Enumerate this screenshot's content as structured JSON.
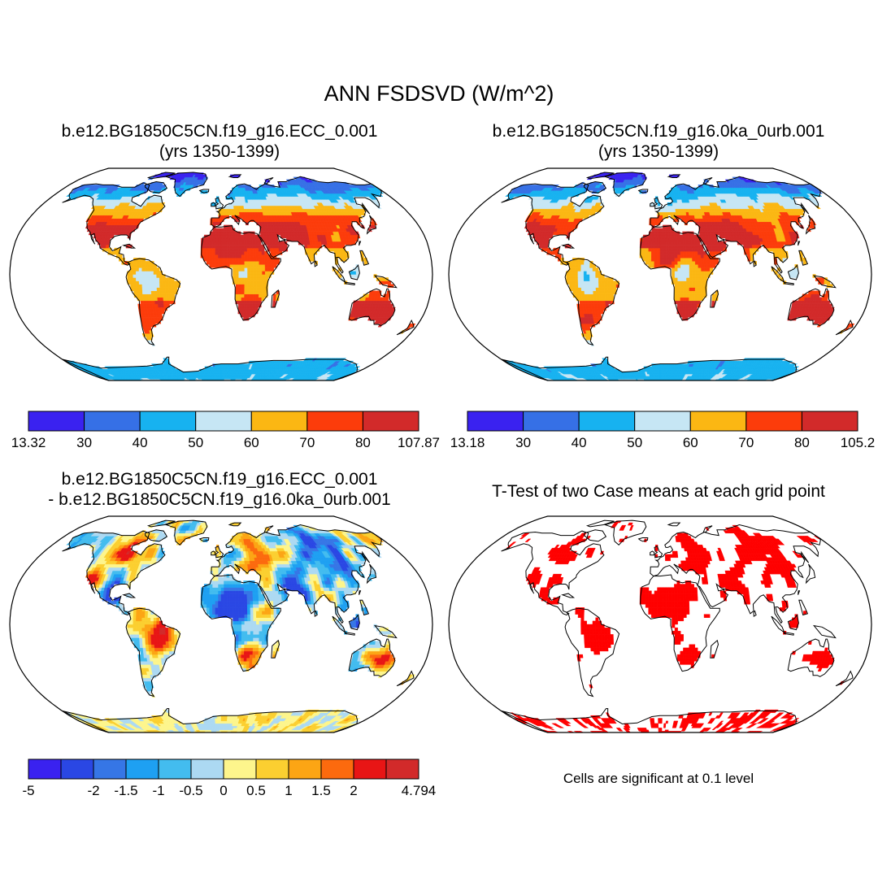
{
  "title": "ANN FSDSVD (W/m^2)",
  "panels": [
    {
      "title_line1": "b.e12.BG1850C5CN.f19_g16.ECC_0.001",
      "title_line2": "(yrs 1350-1399)",
      "scheme": "abs",
      "colorbar": {
        "colors": [
          "#3a22f0",
          "#3670e6",
          "#17b2f0",
          "#c6e6f4",
          "#fbb713",
          "#fc3c0b",
          "#d22a2a"
        ],
        "labels": [
          "13.32",
          "30",
          "40",
          "50",
          "60",
          "70",
          "80",
          "107.87"
        ]
      }
    },
    {
      "title_line1": "b.e12.BG1850C5CN.f19_g16.0ka_0urb.001",
      "title_line2": "(yrs 1350-1399)",
      "scheme": "abs",
      "colorbar": {
        "colors": [
          "#3a22f0",
          "#3670e6",
          "#17b2f0",
          "#c6e6f4",
          "#fbb713",
          "#fc3c0b",
          "#d22a2a"
        ],
        "labels": [
          "13.18",
          "30",
          "40",
          "50",
          "60",
          "70",
          "80",
          "105.2"
        ]
      }
    },
    {
      "title_line1": "b.e12.BG1850C5CN.f19_g16.ECC_0.001",
      "title_line2": "- b.e12.BG1850C5CN.f19_g16.0ka_0urb.001",
      "scheme": "diff",
      "colorbar": {
        "colors": [
          "#3a22f0",
          "#2a47e4",
          "#3676e6",
          "#1ea0f2",
          "#43bcef",
          "#acd9f2",
          "#fdf58c",
          "#fbcf30",
          "#fca514",
          "#fc6a0e",
          "#e81515",
          "#d22a2a"
        ],
        "labels": [
          "-5",
          "",
          "-2",
          "-1.5",
          "-1",
          "-0.5",
          "0",
          "0.5",
          "1",
          "1.5",
          "2",
          "",
          "4.794"
        ]
      }
    },
    {
      "title_line1": "T-Test of two Case means at each grid point",
      "scheme": "sig",
      "note": "Cells are significant at 0.1 level",
      "sig_color": "#ff0000"
    }
  ]
}
